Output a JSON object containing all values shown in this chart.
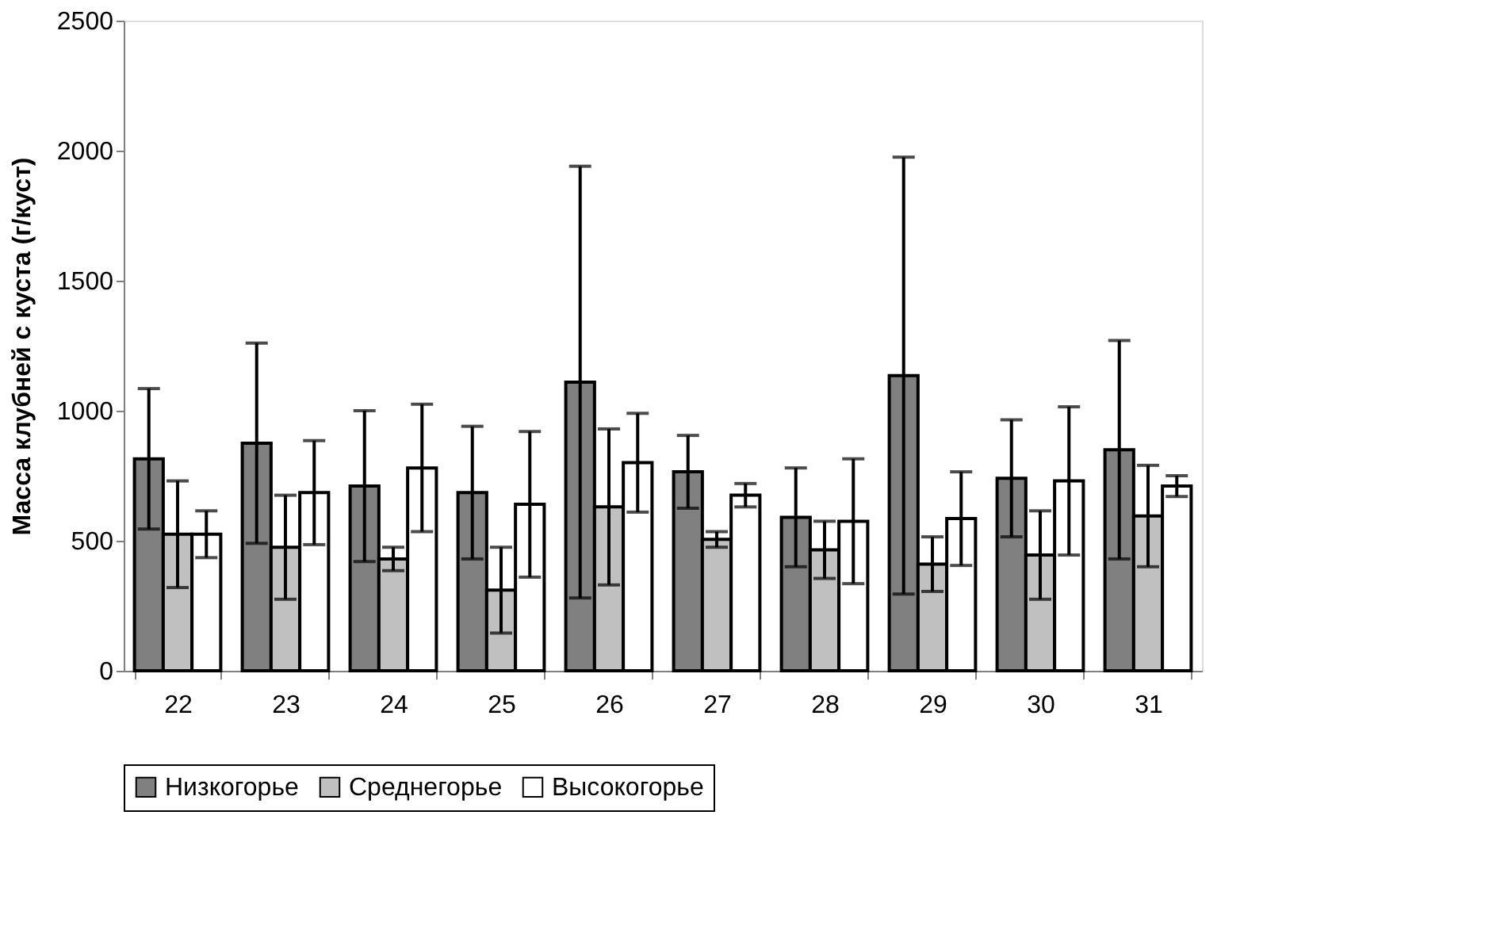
{
  "chart_data": {
    "type": "bar",
    "ylabel": "Масса клубней с куста (г/куст)",
    "categories": [
      "22",
      "23",
      "24",
      "25",
      "26",
      "27",
      "28",
      "29",
      "30",
      "31"
    ],
    "series": [
      {
        "name": "Низкогорье",
        "color": "#808080",
        "values": [
          815,
          875,
          710,
          685,
          1110,
          765,
          590,
          1135,
          740,
          850
        ],
        "errors": [
          270,
          385,
          290,
          255,
          830,
          140,
          190,
          840,
          225,
          420
        ]
      },
      {
        "name": "Среднегорье",
        "color": "#c0c0c0",
        "values": [
          525,
          475,
          430,
          310,
          630,
          505,
          465,
          410,
          445,
          595
        ],
        "errors": [
          205,
          200,
          45,
          165,
          300,
          30,
          110,
          105,
          170,
          195
        ]
      },
      {
        "name": "Высокогорье",
        "color": "#ffffff",
        "values": [
          525,
          685,
          780,
          640,
          800,
          675,
          575,
          585,
          730,
          710
        ],
        "errors": [
          90,
          200,
          245,
          280,
          190,
          45,
          240,
          180,
          285,
          40
        ]
      }
    ],
    "ylim": [
      0,
      2500
    ],
    "yticks": [
      0,
      500,
      1000,
      1500,
      2000,
      2500
    ],
    "grid": false,
    "legend": "bottom"
  }
}
